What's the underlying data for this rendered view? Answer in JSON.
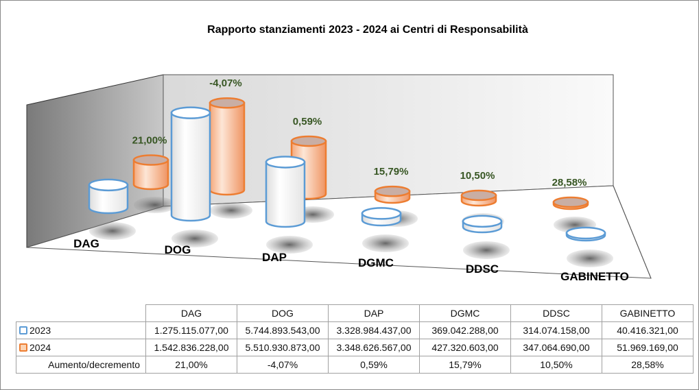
{
  "chart_data": {
    "type": "bar",
    "subtype": "3d-cylinder",
    "title": "Rapporto stanziamenti 2023 - 2024 ai Centri di Responsabilità",
    "categories": [
      "DAG",
      "DOG",
      "DAP",
      "DGMC",
      "DDSC",
      "GABINETTO"
    ],
    "series": [
      {
        "name": "2023",
        "color": "#5b9bd5",
        "values": [
          1275115077.0,
          5744893543.0,
          3328984437.0,
          369042288.0,
          314074158.0,
          40416321.0
        ],
        "labels": [
          "1.275.115.077,00",
          "5.744.893.543,00",
          "3.328.984.437,00",
          "369.042.288,00",
          "314.074.158,00",
          "40.416.321,00"
        ]
      },
      {
        "name": "2024",
        "color": "#ed7d31",
        "values": [
          1542836228.0,
          5510930873.0,
          3348626567.0,
          427320603.0,
          347064690.0,
          51969169.0
        ],
        "labels": [
          "1.542.836.228,00",
          "5.510.930.873,00",
          "3.348.626.567,00",
          "427.320.603,00",
          "347.064.690,00",
          "51.969.169,00"
        ]
      }
    ],
    "change_row": {
      "name": "Aumento/decremento",
      "labels": [
        "21,00%",
        "-4,07%",
        "0,59%",
        "15,79%",
        "10,50%",
        "28,58%"
      ],
      "label_color": "#375623"
    },
    "legend": "data-table",
    "grid": false
  }
}
